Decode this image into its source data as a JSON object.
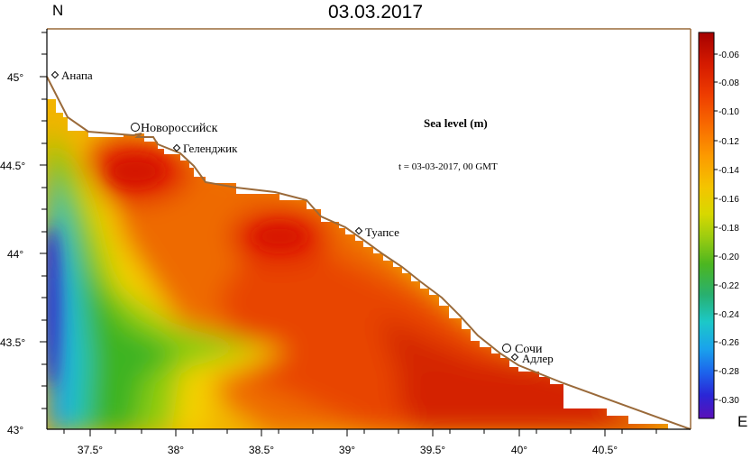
{
  "title": "03.03.2017",
  "compass": {
    "north": "N",
    "east": "E"
  },
  "annotation": {
    "heading": "Sea level (m)",
    "time": "t = 03-03-2017,  00 GMT"
  },
  "x_ticks": [
    "37.5°",
    "38°",
    "38.5°",
    "39°",
    "39.5°",
    "40°",
    "40.5°"
  ],
  "y_ticks": [
    "45°",
    "44.5°",
    "44°",
    "43.5°",
    "43°"
  ],
  "colorbar": {
    "labels": [
      "-0.06",
      "-0.08",
      "-0.10",
      "-0.12",
      "-0.14",
      "-0.16",
      "-0.18",
      "-0.20",
      "-0.22",
      "-0.24",
      "-0.26",
      "-0.28",
      "-0.30"
    ],
    "colors": [
      "#a50000",
      "#d41a00",
      "#ee3c00",
      "#f86a00",
      "#fc9a00",
      "#f4c400",
      "#d8d800",
      "#9ccc10",
      "#4cb620",
      "#28b070",
      "#1cc8c8",
      "#1aa2ec",
      "#1c64ec",
      "#2a26d6",
      "#5a10b8"
    ]
  },
  "cities": [
    {
      "name": "Анапа",
      "marker": "diamond"
    },
    {
      "name": "Новороссийск",
      "marker": "circle"
    },
    {
      "name": "Геленджик",
      "marker": "diamond"
    },
    {
      "name": "Туапсе",
      "marker": "diamond"
    },
    {
      "name": "Сочи",
      "marker": "circle"
    },
    {
      "name": "Адлер",
      "marker": "diamond"
    }
  ],
  "map_extent": {
    "lon": [
      37.25,
      41.0
    ],
    "lat": [
      43.0,
      45.25
    ]
  },
  "colors": {
    "coastline": "#9a6a3a",
    "frame": "#000000"
  }
}
